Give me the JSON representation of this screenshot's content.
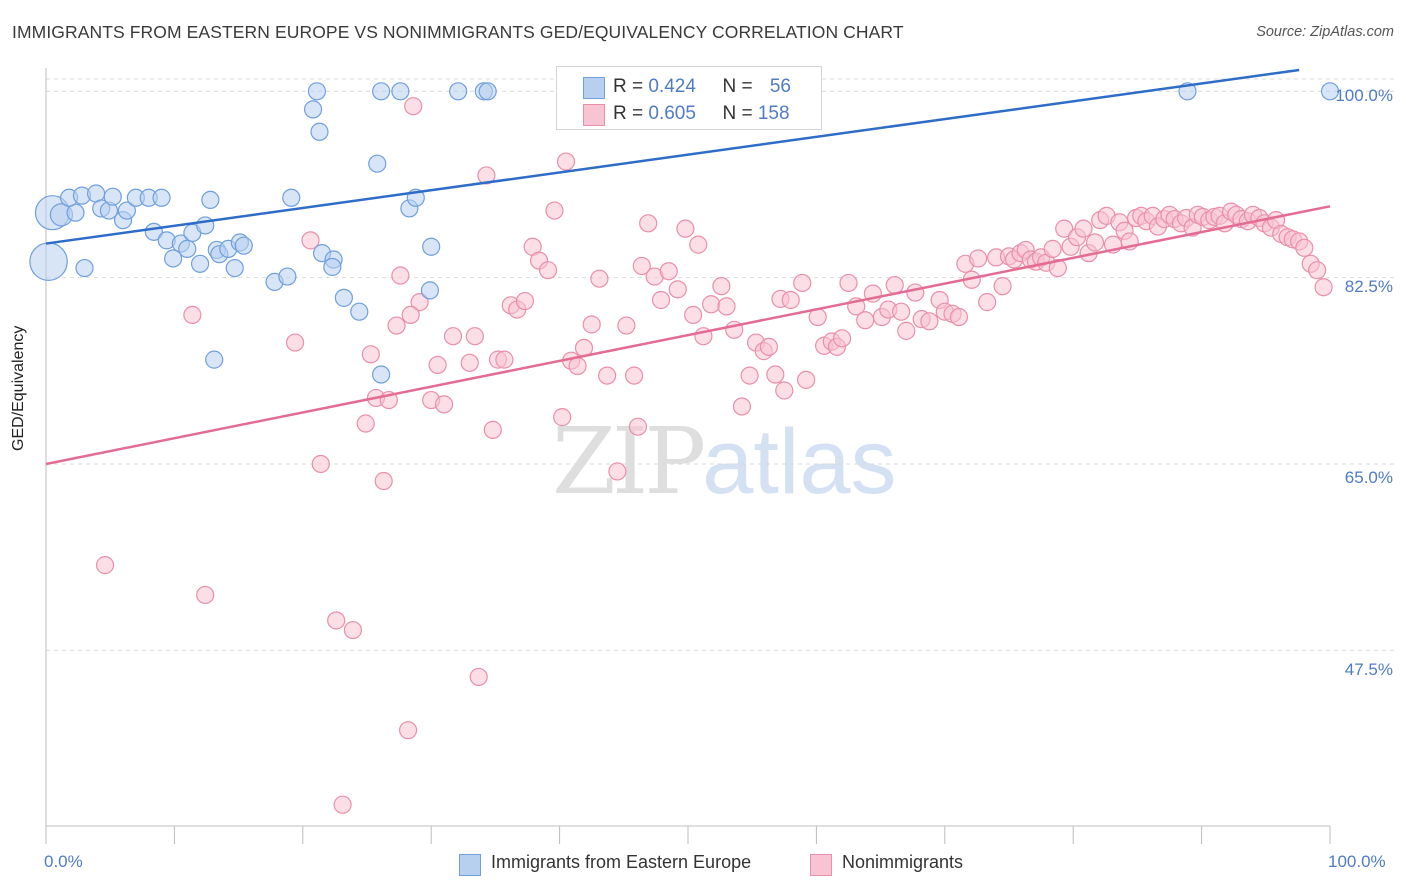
{
  "title": "IMMIGRANTS FROM EASTERN EUROPE VS NONIMMIGRANTS GED/EQUIVALENCY CORRELATION CHART",
  "source": "Source: ZipAtlas.com",
  "watermark": {
    "zip": "ZIP",
    "atlas": "atlas"
  },
  "legend": {
    "rows": [
      {
        "r_label": "R = ",
        "r_value": "0.424",
        "n_label": "N = ",
        "n_value": "56"
      },
      {
        "r_label": "R = ",
        "r_value": "0.605",
        "n_label": "N = ",
        "n_value": "158"
      }
    ]
  },
  "colors": {
    "blue_fill": "#b8d0f0",
    "blue_stroke": "#6f9fdc",
    "blue_line": "#2e6cc9",
    "pink_fill": "#f8c3d2",
    "pink_stroke": "#ea8fab",
    "pink_line": "#e46b93",
    "tick_text": "#4f7cc4",
    "grid": "#d9d9d9"
  },
  "chart_data": {
    "type": "scatter",
    "title": "IMMIGRANTS FROM EASTERN EUROPE VS NONIMMIGRANTS GED/EQUIVALENCY CORRELATION CHART",
    "xlabel": "",
    "ylabel": "GED/Equivalency",
    "xlim": [
      0,
      100
    ],
    "ylim": [
      31,
      102
    ],
    "x_tick_labels": [
      "0.0%",
      "100.0%"
    ],
    "y_ticks": [
      47.5,
      65.0,
      82.5,
      100.0
    ],
    "y_tick_labels": [
      "47.5%",
      "65.0%",
      "82.5%",
      "100.0%"
    ],
    "grid": "horizontal dashed",
    "legend_position": "top-center and bottom",
    "series": [
      {
        "name": "Immigrants from Eastern Europe",
        "color": "blue",
        "r": 0.424,
        "n": 56,
        "trend": {
          "x": [
            0,
            97.6
          ],
          "y": [
            85.7,
            102.0
          ]
        },
        "points": [
          [
            0.2,
            84.0,
            2.2
          ],
          [
            0.5,
            88.6,
            2.0
          ],
          [
            1.2,
            88.4,
            1.3
          ],
          [
            2.3,
            88.6,
            1
          ],
          [
            1.8,
            90.0,
            1
          ],
          [
            2.8,
            90.2,
            1
          ],
          [
            3.9,
            90.4,
            1
          ],
          [
            4.3,
            89.0,
            1
          ],
          [
            4.9,
            88.8,
            1
          ],
          [
            5.2,
            90.1,
            1
          ],
          [
            6.0,
            87.9,
            1
          ],
          [
            6.3,
            88.8,
            1
          ],
          [
            7.0,
            90.0,
            1
          ],
          [
            8.0,
            90.0,
            1
          ],
          [
            8.4,
            86.8,
            1
          ],
          [
            9.0,
            90.0,
            1
          ],
          [
            9.4,
            86.0,
            1
          ],
          [
            9.9,
            84.3,
            1
          ],
          [
            10.5,
            85.7,
            1
          ],
          [
            11.4,
            86.7,
            1
          ],
          [
            11.0,
            85.2,
            1
          ],
          [
            12.0,
            83.8,
            1
          ],
          [
            12.4,
            87.4,
            1
          ],
          [
            12.8,
            89.8,
            1
          ],
          [
            13.1,
            74.8,
            1
          ],
          [
            13.3,
            85.1,
            1
          ],
          [
            13.5,
            84.7,
            1
          ],
          [
            14.2,
            85.2,
            1
          ],
          [
            15.1,
            85.8,
            1
          ],
          [
            14.7,
            83.4,
            1
          ],
          [
            15.4,
            85.5,
            1
          ],
          [
            17.8,
            82.1,
            1
          ],
          [
            18.8,
            82.6,
            1
          ],
          [
            19.1,
            90.0,
            1
          ],
          [
            20.8,
            98.3,
            1
          ],
          [
            21.3,
            96.2,
            1
          ],
          [
            21.5,
            84.8,
            1
          ],
          [
            22.4,
            84.2,
            1
          ],
          [
            23.2,
            80.6,
            1
          ],
          [
            24.4,
            79.3,
            1
          ],
          [
            25.8,
            93.2,
            1
          ],
          [
            26.1,
            73.4,
            1
          ],
          [
            27.6,
            100.0,
            1
          ],
          [
            28.3,
            89.0,
            1
          ],
          [
            28.8,
            90.0,
            1
          ],
          [
            29.9,
            81.3,
            1
          ],
          [
            30.0,
            85.4,
            1
          ],
          [
            21.1,
            100.0,
            1
          ],
          [
            26.1,
            100.0,
            1
          ],
          [
            32.1,
            100.0,
            1
          ],
          [
            34.1,
            100.0,
            1
          ],
          [
            34.4,
            100.0,
            1
          ],
          [
            88.9,
            100.0,
            1
          ],
          [
            100.0,
            100.0,
            1
          ],
          [
            22.3,
            83.5,
            1
          ],
          [
            3.0,
            83.4,
            1
          ]
        ]
      },
      {
        "name": "Nonimmigrants",
        "color": "pink",
        "r": 0.605,
        "n": 158,
        "trend": {
          "x": [
            0,
            100
          ],
          "y": [
            65.0,
            89.2
          ]
        },
        "points": [
          [
            4.6,
            55.5
          ],
          [
            11.4,
            79.0
          ],
          [
            12.4,
            52.7
          ],
          [
            19.4,
            76.4
          ],
          [
            20.6,
            86.0
          ],
          [
            21.4,
            65.0
          ],
          [
            22.6,
            50.3
          ],
          [
            23.1,
            33.0
          ],
          [
            23.9,
            49.4
          ],
          [
            24.9,
            68.8
          ],
          [
            25.7,
            71.2
          ],
          [
            25.3,
            75.3
          ],
          [
            26.3,
            63.4
          ],
          [
            26.7,
            71.0
          ],
          [
            27.3,
            78.0
          ],
          [
            27.6,
            82.7
          ],
          [
            28.2,
            40.0
          ],
          [
            28.6,
            98.6
          ],
          [
            29.1,
            80.2
          ],
          [
            30.0,
            71.0
          ],
          [
            30.5,
            74.3
          ],
          [
            31.0,
            70.6
          ],
          [
            31.7,
            77.0
          ],
          [
            33.0,
            74.5
          ],
          [
            33.4,
            77.0
          ],
          [
            33.7,
            45.0
          ],
          [
            34.3,
            92.1
          ],
          [
            34.8,
            68.2
          ],
          [
            35.2,
            74.8
          ],
          [
            35.7,
            74.8
          ],
          [
            36.2,
            79.9
          ],
          [
            36.7,
            79.5
          ],
          [
            37.3,
            80.3
          ],
          [
            37.9,
            85.4
          ],
          [
            38.4,
            84.1
          ],
          [
            39.1,
            83.2
          ],
          [
            39.6,
            88.8
          ],
          [
            40.2,
            69.4
          ],
          [
            40.5,
            93.4
          ],
          [
            40.9,
            74.7
          ],
          [
            41.4,
            74.2
          ],
          [
            41.9,
            75.9
          ],
          [
            42.5,
            78.1
          ],
          [
            43.1,
            82.4
          ],
          [
            43.7,
            73.3
          ],
          [
            44.5,
            64.3
          ],
          [
            45.2,
            78.0
          ],
          [
            45.8,
            73.3
          ],
          [
            46.1,
            68.5
          ],
          [
            46.4,
            83.6
          ],
          [
            46.9,
            87.6
          ],
          [
            47.4,
            82.6
          ],
          [
            47.9,
            80.4
          ],
          [
            48.5,
            83.1
          ],
          [
            49.2,
            81.4
          ],
          [
            49.8,
            87.1
          ],
          [
            50.4,
            79.0
          ],
          [
            50.8,
            85.6
          ],
          [
            51.2,
            77.0
          ],
          [
            51.8,
            80.0
          ],
          [
            52.6,
            81.7
          ],
          [
            53.0,
            79.8
          ],
          [
            53.6,
            77.6
          ],
          [
            54.2,
            70.4
          ],
          [
            54.8,
            73.3
          ],
          [
            55.3,
            76.4
          ],
          [
            55.9,
            75.6
          ],
          [
            56.3,
            76.0
          ],
          [
            56.8,
            73.4
          ],
          [
            57.2,
            80.5
          ],
          [
            57.5,
            71.9
          ],
          [
            58.0,
            80.4
          ],
          [
            58.9,
            82.0
          ],
          [
            59.2,
            72.9
          ],
          [
            60.1,
            78.8
          ],
          [
            60.6,
            76.1
          ],
          [
            61.2,
            76.5
          ],
          [
            61.6,
            76.0
          ],
          [
            62.0,
            76.8
          ],
          [
            62.5,
            82.0
          ],
          [
            63.1,
            79.8
          ],
          [
            63.8,
            78.5
          ],
          [
            64.4,
            81.0
          ],
          [
            65.1,
            78.8
          ],
          [
            65.6,
            79.5
          ],
          [
            66.1,
            81.8
          ],
          [
            66.6,
            79.3
          ],
          [
            67.0,
            77.5
          ],
          [
            67.7,
            81.1
          ],
          [
            68.2,
            78.6
          ],
          [
            68.8,
            78.4
          ],
          [
            69.6,
            80.4
          ],
          [
            70.0,
            79.3
          ],
          [
            70.6,
            79.1
          ],
          [
            71.1,
            78.8
          ],
          [
            71.6,
            83.8
          ],
          [
            72.1,
            82.3
          ],
          [
            72.6,
            84.3
          ],
          [
            73.3,
            80.2
          ],
          [
            74.0,
            84.4
          ],
          [
            74.5,
            81.7
          ],
          [
            75.0,
            84.5
          ],
          [
            75.4,
            84.2
          ],
          [
            75.9,
            84.8
          ],
          [
            76.3,
            85.1
          ],
          [
            76.7,
            84.2
          ],
          [
            77.1,
            84.0
          ],
          [
            77.5,
            84.4
          ],
          [
            77.9,
            83.9
          ],
          [
            78.4,
            85.2
          ],
          [
            78.8,
            83.4
          ],
          [
            79.3,
            87.1
          ],
          [
            79.8,
            85.4
          ],
          [
            80.3,
            86.3
          ],
          [
            80.8,
            87.1
          ],
          [
            81.2,
            84.8
          ],
          [
            81.7,
            85.8
          ],
          [
            82.1,
            87.9
          ],
          [
            82.6,
            88.3
          ],
          [
            83.1,
            85.6
          ],
          [
            83.6,
            87.7
          ],
          [
            84.0,
            86.9
          ],
          [
            84.4,
            85.9
          ],
          [
            84.9,
            88.1
          ],
          [
            85.3,
            88.3
          ],
          [
            85.7,
            87.8
          ],
          [
            86.2,
            88.3
          ],
          [
            86.6,
            87.3
          ],
          [
            87.1,
            88.0
          ],
          [
            87.5,
            88.4
          ],
          [
            87.9,
            88.0
          ],
          [
            88.4,
            87.6
          ],
          [
            88.8,
            88.1
          ],
          [
            89.3,
            87.2
          ],
          [
            89.7,
            88.4
          ],
          [
            90.1,
            88.2
          ],
          [
            90.6,
            87.9
          ],
          [
            91.0,
            88.2
          ],
          [
            91.4,
            88.3
          ],
          [
            91.8,
            87.6
          ],
          [
            92.3,
            88.7
          ],
          [
            92.7,
            88.4
          ],
          [
            93.1,
            88.0
          ],
          [
            93.6,
            87.8
          ],
          [
            94.0,
            88.4
          ],
          [
            94.5,
            88.1
          ],
          [
            94.9,
            87.6
          ],
          [
            95.4,
            87.2
          ],
          [
            95.8,
            87.9
          ],
          [
            96.2,
            86.6
          ],
          [
            96.7,
            86.3
          ],
          [
            97.1,
            86.1
          ],
          [
            97.6,
            85.9
          ],
          [
            98.0,
            85.3
          ],
          [
            98.5,
            83.8
          ],
          [
            99.0,
            83.2
          ],
          [
            99.5,
            81.6
          ],
          [
            28.4,
            79.0
          ]
        ]
      }
    ]
  },
  "bottom_legend": [
    "Immigrants from Eastern Europe",
    "Nonimmigrants"
  ]
}
